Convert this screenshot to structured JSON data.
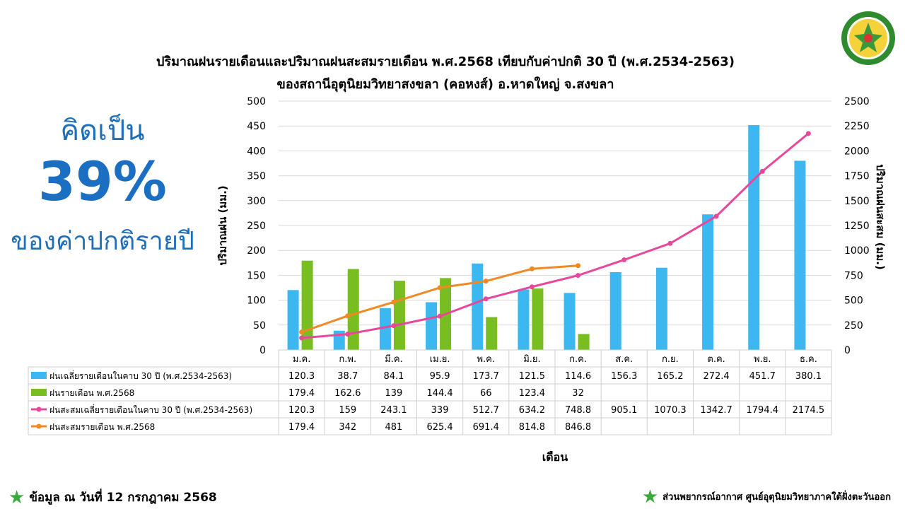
{
  "title_line1": "ปริมาณฝนรายเดือนและปริมาณฝนสะสมรายเดือน  พ.ศ.2568  เทียบกับค่าปกติ 30 ปี (พ.ศ.2534-2563)",
  "title_line2": "ของสถานีอุตุนิยมวิทยาสงขลา  (คอหงส์) อ.หาดใหญ่ จ.สงขลา",
  "kpi": {
    "label_top": "คิดเป็น",
    "percent": "39%",
    "label_bottom": "ของค่าปกติรายปี"
  },
  "footer_left": "ข้อมูล ณ วันที่ 12 กรกฎาคม 2568",
  "footer_right": "ส่วนพยากรณ์อากาศ ศูนย์อุตุนิยมวิทยาภาคใต้ฝั่งตะวันออก",
  "logo_icon": "meteorological-department-seal-icon",
  "chart_data": {
    "type": "bar",
    "title": "ปริมาณฝนรายเดือนและปริมาณฝนสะสมรายเดือน  พ.ศ.2568  เทียบกับค่าปกติ 30 ปี (พ.ศ.2534-2563)",
    "xlabel": "เดือน",
    "ylabel": "ปริมาณฝน (มม.)",
    "y2label": "ปริมาณฝนสะสม (มม.)",
    "ylim": [
      0,
      500
    ],
    "y2lim": [
      0,
      2500
    ],
    "yticks": [
      "0",
      "50",
      "100",
      "150",
      "200",
      "250",
      "300",
      "350",
      "400",
      "450",
      "500"
    ],
    "y2ticks": [
      "0",
      "250",
      "500",
      "750",
      "1000",
      "1250",
      "1500",
      "1750",
      "2000",
      "2250",
      "2500"
    ],
    "grid": true,
    "legend": "data-table",
    "categories": [
      "ม.ค.",
      "ก.พ.",
      "มี.ค.",
      "เม.ย.",
      "พ.ค.",
      "มิ.ย.",
      "ก.ค.",
      "ส.ค.",
      "ก.ย.",
      "ต.ค.",
      "พ.ย.",
      "ธ.ค."
    ],
    "series": [
      {
        "name": "ฝนเฉลี่ยรายเดือนในคาบ 30 ปี (พ.ศ.2534-2563)",
        "type": "bar",
        "axis": "left",
        "color": "#3db7f0",
        "values": [
          120.3,
          38.7,
          84.1,
          95.9,
          173.7,
          121.5,
          114.6,
          156.3,
          165.2,
          272.4,
          451.7,
          380.1
        ]
      },
      {
        "name": "ฝนรายเดือน พ.ศ.2568",
        "type": "bar",
        "axis": "left",
        "color": "#78be20",
        "values": [
          179.4,
          162.6,
          139,
          144.4,
          66,
          123.4,
          32,
          null,
          null,
          null,
          null,
          null
        ]
      },
      {
        "name": "ฝนสะสมเฉลี่ยรายเดือนในคาบ 30 ปี (พ.ศ.2534-2563)",
        "type": "line",
        "axis": "right",
        "color": "#e8489a",
        "values": [
          120.3,
          159,
          243.1,
          339,
          512.7,
          634.2,
          748.8,
          905.1,
          1070.3,
          1342.7,
          1794.4,
          2174.5
        ]
      },
      {
        "name": "ฝนสะสมรายเดือน พ.ศ.2568",
        "type": "line",
        "axis": "right",
        "color": "#f08a24",
        "values": [
          179.4,
          342,
          481,
          625.4,
          691.4,
          814.8,
          846.8,
          null,
          null,
          null,
          null,
          null
        ]
      }
    ]
  }
}
